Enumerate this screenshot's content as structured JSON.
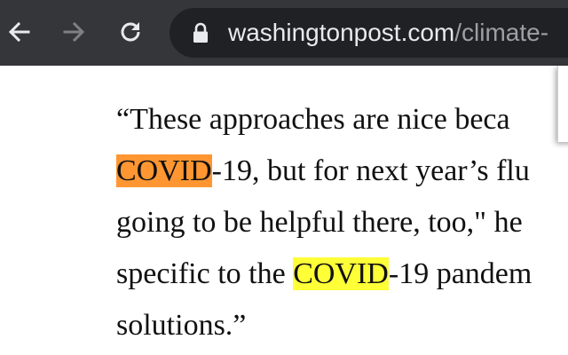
{
  "browser": {
    "url_host": "washingtonpost.com",
    "url_path": "/climate-",
    "icons": {
      "back": "arrow-left-icon",
      "forward": "arrow-right-icon",
      "reload": "reload-icon",
      "lock": "lock-icon"
    },
    "forward_enabled": false
  },
  "article": {
    "lines": [
      {
        "text": "“These approaches are nice beca"
      },
      {
        "highlight": "COVID",
        "after": "-19, but for next year’s flu"
      },
      {
        "text": "going to be helpful there, too,\" he"
      },
      {
        "before": "specific to the ",
        "highlight": "COVID",
        "after": "-19 pandem"
      },
      {
        "text": "solutions.”"
      }
    ]
  },
  "find_highlight": {
    "current_color": "#ff9632",
    "match_color": "#ffff38"
  }
}
